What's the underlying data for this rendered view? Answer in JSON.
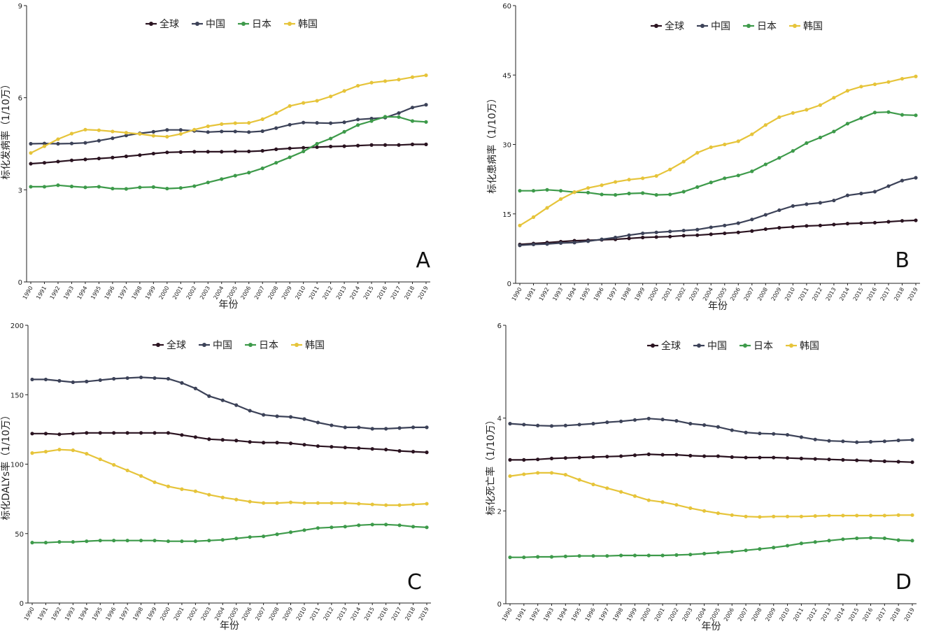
{
  "chart_data": [
    {
      "panel": "A",
      "type": "line",
      "ylabel": "标化发病率（1/10万）",
      "xlabel": "年份",
      "ylim": [
        0,
        9
      ],
      "yticks": [
        "0",
        "3",
        "6",
        "9"
      ],
      "x": [
        "1990",
        "1991",
        "1992",
        "1993",
        "1994",
        "1995",
        "1996",
        "1997",
        "1998",
        "1999",
        "2000",
        "2001",
        "2002",
        "2003",
        "2004",
        "2005",
        "2006",
        "2007",
        "2008",
        "2009",
        "2010",
        "2011",
        "2012",
        "2013",
        "2014",
        "2015",
        "2016",
        "2017",
        "2018",
        "2019"
      ],
      "legend_position": "top-center",
      "series": [
        {
          "name": "全球",
          "color": "#2a1320",
          "values": [
            3.85,
            3.88,
            3.92,
            3.96,
            3.99,
            4.02,
            4.05,
            4.09,
            4.13,
            4.18,
            4.22,
            4.23,
            4.24,
            4.24,
            4.24,
            4.25,
            4.25,
            4.27,
            4.32,
            4.35,
            4.37,
            4.39,
            4.41,
            4.42,
            4.44,
            4.46,
            4.46,
            4.46,
            4.48,
            4.48
          ]
        },
        {
          "name": "中国",
          "color": "#3c4258",
          "values": [
            4.5,
            4.51,
            4.5,
            4.51,
            4.53,
            4.6,
            4.68,
            4.77,
            4.84,
            4.89,
            4.95,
            4.95,
            4.92,
            4.88,
            4.9,
            4.9,
            4.88,
            4.91,
            5.01,
            5.12,
            5.19,
            5.18,
            5.17,
            5.2,
            5.29,
            5.32,
            5.35,
            5.5,
            5.68,
            5.77
          ]
        },
        {
          "name": "日本",
          "color": "#3d9a4a",
          "values": [
            3.1,
            3.1,
            3.15,
            3.11,
            3.08,
            3.1,
            3.04,
            3.03,
            3.08,
            3.09,
            3.04,
            3.06,
            3.12,
            3.24,
            3.35,
            3.46,
            3.56,
            3.7,
            3.88,
            4.06,
            4.25,
            4.5,
            4.67,
            4.89,
            5.11,
            5.24,
            5.38,
            5.37,
            5.24,
            5.21
          ]
        },
        {
          "name": "韩国",
          "color": "#e6c43a",
          "values": [
            4.2,
            4.42,
            4.65,
            4.83,
            4.96,
            4.94,
            4.9,
            4.86,
            4.82,
            4.76,
            4.73,
            4.82,
            4.96,
            5.07,
            5.14,
            5.17,
            5.18,
            5.3,
            5.5,
            5.73,
            5.83,
            5.9,
            6.04,
            6.22,
            6.39,
            6.49,
            6.54,
            6.59,
            6.67,
            6.73
          ]
        }
      ]
    },
    {
      "panel": "B",
      "type": "line",
      "ylabel": "标化患病率（1/10万）",
      "xlabel": "年份",
      "ylim": [
        0,
        60
      ],
      "yticks": [
        "0",
        "15",
        "30",
        "45",
        "60"
      ],
      "x": [
        "1990",
        "1991",
        "1992",
        "1993",
        "1994",
        "1995",
        "1996",
        "1997",
        "1998",
        "1999",
        "2000",
        "2001",
        "2002",
        "2003",
        "2004",
        "2005",
        "2006",
        "2007",
        "2008",
        "2009",
        "2010",
        "2011",
        "2012",
        "2013",
        "2014",
        "2015",
        "2016",
        "2017",
        "2018",
        "2019"
      ],
      "legend_position": "top-center",
      "series": [
        {
          "name": "全球",
          "color": "#2a1320",
          "values": [
            8.4,
            8.6,
            8.8,
            9.0,
            9.2,
            9.3,
            9.4,
            9.5,
            9.7,
            9.9,
            10.0,
            10.1,
            10.3,
            10.4,
            10.6,
            10.8,
            11.0,
            11.3,
            11.7,
            12.0,
            12.2,
            12.4,
            12.5,
            12.7,
            12.9,
            13.0,
            13.1,
            13.3,
            13.5,
            13.6
          ]
        },
        {
          "name": "中国",
          "color": "#3c4258",
          "values": [
            8.2,
            8.4,
            8.5,
            8.7,
            8.8,
            9.1,
            9.5,
            9.9,
            10.4,
            10.8,
            11.0,
            11.2,
            11.4,
            11.6,
            12.1,
            12.5,
            13.0,
            13.8,
            14.8,
            15.8,
            16.7,
            17.1,
            17.4,
            17.9,
            19.0,
            19.4,
            19.8,
            21.0,
            22.2,
            22.8
          ]
        },
        {
          "name": "日本",
          "color": "#3d9a4a",
          "values": [
            20.0,
            20.0,
            20.2,
            20.0,
            19.7,
            19.6,
            19.2,
            19.1,
            19.4,
            19.5,
            19.1,
            19.2,
            19.8,
            20.8,
            21.8,
            22.7,
            23.3,
            24.2,
            25.7,
            27.1,
            28.6,
            30.3,
            31.5,
            32.8,
            34.5,
            35.7,
            36.9,
            37.0,
            36.4,
            36.3
          ]
        },
        {
          "name": "韩国",
          "color": "#e6c43a",
          "values": [
            12.5,
            14.3,
            16.3,
            18.2,
            19.7,
            20.6,
            21.2,
            21.9,
            22.4,
            22.7,
            23.2,
            24.6,
            26.3,
            28.2,
            29.4,
            30.0,
            30.7,
            32.2,
            34.2,
            35.9,
            36.8,
            37.5,
            38.5,
            40.1,
            41.6,
            42.5,
            43.0,
            43.5,
            44.2,
            44.7
          ]
        }
      ]
    },
    {
      "panel": "C",
      "type": "line",
      "ylabel": "标化DALYs率（1/10万）",
      "xlabel": "年份",
      "ylim": [
        0,
        200
      ],
      "yticks": [
        "0",
        "50",
        "100",
        "150",
        "200"
      ],
      "x": [
        "1990",
        "1991",
        "1992",
        "1993",
        "1994",
        "1995",
        "1996",
        "1997",
        "1998",
        "1999",
        "2000",
        "2001",
        "2002",
        "2003",
        "2004",
        "2005",
        "2006",
        "2007",
        "2008",
        "2009",
        "2010",
        "2011",
        "2012",
        "2013",
        "2014",
        "2015",
        "2016",
        "2017",
        "2018",
        "2019"
      ],
      "legend_position": "top-center",
      "series": [
        {
          "name": "全球",
          "color": "#2a1320",
          "values": [
            122,
            122,
            121.5,
            122,
            122.5,
            122.5,
            122.5,
            122.5,
            122.5,
            122.5,
            122.5,
            121,
            119.5,
            118,
            117.5,
            117,
            116,
            115.5,
            115.5,
            115,
            114,
            113,
            112.5,
            112,
            111.5,
            111,
            110.5,
            109.5,
            109,
            108.5
          ]
        },
        {
          "name": "中国",
          "color": "#3c4258",
          "values": [
            161,
            161,
            160,
            159,
            159.5,
            160.5,
            161.5,
            162,
            162.5,
            162,
            161.5,
            158.5,
            154.5,
            149,
            146,
            142.5,
            138.5,
            135.5,
            134.5,
            134,
            132.5,
            130,
            128,
            126.5,
            126.5,
            125.5,
            125.5,
            126,
            126.5,
            126.5
          ]
        },
        {
          "name": "日本",
          "color": "#3d9a4a",
          "values": [
            43.5,
            43.5,
            44,
            44,
            44.5,
            45,
            45,
            45,
            45,
            45,
            44.5,
            44.5,
            44.5,
            45,
            45.5,
            46.5,
            47.5,
            48,
            49.5,
            51,
            52.5,
            54,
            54.5,
            55,
            56,
            56.5,
            56.5,
            56,
            55,
            54.5
          ]
        },
        {
          "name": "韩国",
          "color": "#e6c43a",
          "values": [
            108,
            109,
            110.5,
            110,
            107.5,
            103.5,
            99.5,
            95.5,
            91.5,
            87,
            84,
            82,
            80.5,
            78,
            76,
            74.5,
            73,
            72,
            72,
            72.5,
            72,
            72,
            72,
            72,
            71.5,
            71,
            70.5,
            70.5,
            71,
            71.5
          ]
        }
      ]
    },
    {
      "panel": "D",
      "type": "line",
      "ylabel": "标化死亡率（1/10万）",
      "xlabel": "年份",
      "ylim": [
        0,
        6
      ],
      "yticks": [
        "0",
        "2",
        "4",
        "6"
      ],
      "x": [
        "1990",
        "1991",
        "1992",
        "1993",
        "1994",
        "1995",
        "1996",
        "1997",
        "1998",
        "1999",
        "2000",
        "2001",
        "2002",
        "2003",
        "2004",
        "2005",
        "2006",
        "2007",
        "2008",
        "2009",
        "2010",
        "2011",
        "2012",
        "2013",
        "2014",
        "2015",
        "2016",
        "2017",
        "2018",
        "2019"
      ],
      "legend_position": "top-center",
      "series": [
        {
          "name": "全球",
          "color": "#2a1320",
          "values": [
            3.1,
            3.1,
            3.11,
            3.13,
            3.14,
            3.15,
            3.16,
            3.17,
            3.18,
            3.2,
            3.22,
            3.21,
            3.21,
            3.19,
            3.18,
            3.18,
            3.16,
            3.15,
            3.15,
            3.15,
            3.14,
            3.13,
            3.12,
            3.11,
            3.1,
            3.09,
            3.08,
            3.07,
            3.06,
            3.05
          ]
        },
        {
          "name": "中国",
          "color": "#3c4258",
          "values": [
            3.88,
            3.86,
            3.84,
            3.83,
            3.84,
            3.86,
            3.88,
            3.91,
            3.93,
            3.96,
            3.99,
            3.97,
            3.94,
            3.88,
            3.85,
            3.81,
            3.74,
            3.69,
            3.67,
            3.66,
            3.64,
            3.59,
            3.54,
            3.51,
            3.5,
            3.48,
            3.49,
            3.5,
            3.52,
            3.53
          ]
        },
        {
          "name": "日本",
          "color": "#3d9a4a",
          "values": [
            1.0,
            1.0,
            1.01,
            1.01,
            1.02,
            1.03,
            1.03,
            1.03,
            1.04,
            1.04,
            1.04,
            1.04,
            1.05,
            1.06,
            1.08,
            1.1,
            1.12,
            1.15,
            1.18,
            1.21,
            1.25,
            1.3,
            1.33,
            1.36,
            1.39,
            1.41,
            1.42,
            1.41,
            1.37,
            1.36
          ]
        },
        {
          "name": "韩国",
          "color": "#e6c43a",
          "values": [
            2.75,
            2.79,
            2.82,
            2.82,
            2.78,
            2.67,
            2.57,
            2.49,
            2.41,
            2.32,
            2.23,
            2.19,
            2.13,
            2.06,
            2.0,
            1.95,
            1.91,
            1.88,
            1.87,
            1.88,
            1.88,
            1.88,
            1.89,
            1.9,
            1.9,
            1.9,
            1.9,
            1.9,
            1.91,
            1.91
          ]
        }
      ]
    }
  ]
}
